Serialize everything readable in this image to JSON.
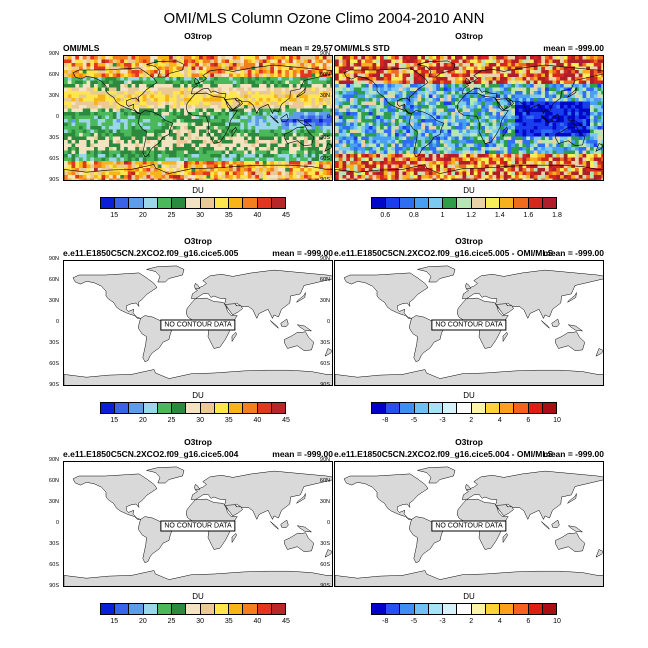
{
  "figure": {
    "title": "OMI/MLS Column Ozone Climo 2004-2010 ANN"
  },
  "map_axis": {
    "lat_labels": [
      "90N",
      "60N",
      "30N",
      "0",
      "30S",
      "60S",
      "90S"
    ]
  },
  "colors": {
    "abs_palette": [
      "#0b1fd9",
      "#3a63e8",
      "#5e9be8",
      "#9bd6ea",
      "#4bb95a",
      "#2c8a3f",
      "#f3e3c1",
      "#e9c995",
      "#ffe64d",
      "#f9b419",
      "#f57f1f",
      "#e0371e",
      "#b72727"
    ],
    "std_palette": [
      "#0008c8",
      "#1a3df0",
      "#2f6ef0",
      "#4aa0f0",
      "#7dcaf0",
      "#2e9e4a",
      "#b7e6b4",
      "#ead2a8",
      "#f7ef5a",
      "#f7b11e",
      "#ef6c1e",
      "#d5271e",
      "#b01e2a"
    ],
    "diff_palette": [
      "#0000c8",
      "#2a4ff0",
      "#3f8ef5",
      "#6fc0f5",
      "#a8e2f7",
      "#d5f2fb",
      "#ffffff",
      "#fff3a8",
      "#ffd23c",
      "#ffa01e",
      "#f5621e",
      "#dd1e14",
      "#a80e14"
    ],
    "land": "#d9d9d9"
  },
  "chart_data": [
    {
      "type": "heatmap",
      "panel": "top-left",
      "title": "O3trop",
      "left_string": "OMI/MLS",
      "right_string": "mean =  29.57",
      "has_data": true,
      "colorbar_label": "DU",
      "colorbar_levels": [
        "15",
        "20",
        "25",
        "30",
        "35",
        "40",
        "45"
      ],
      "colorbar_bins": 13
    },
    {
      "type": "heatmap",
      "panel": "top-right",
      "title": "O3trop",
      "left_string": "OMI/MLS STD",
      "right_string": "mean = -999.00",
      "has_data": true,
      "colorbar_label": "DU",
      "colorbar_levels": [
        "0.6",
        "0.8",
        "1",
        "1.2",
        "1.4",
        "1.6",
        "1.8"
      ],
      "colorbar_bins": 13
    },
    {
      "type": "heatmap",
      "panel": "middle-left",
      "title": "O3trop",
      "left_string": "e.e11.E1850C5CN.2XCO2.f09_g16.cice5.005",
      "right_string": "mean = -999.00",
      "has_data": false,
      "no_data_text": "NO CONTOUR DATA",
      "colorbar_label": "DU",
      "colorbar_levels": [
        "15",
        "20",
        "25",
        "30",
        "35",
        "40",
        "45"
      ],
      "colorbar_bins": 13
    },
    {
      "type": "heatmap",
      "panel": "middle-right",
      "title": "O3trop",
      "left_string": "e.e11.E1850C5CN.2XCO2.f09_g16.cice5.005 - OMI/MLS",
      "right_string": "mean = -999.00",
      "has_data": false,
      "no_data_text": "NO CONTOUR DATA",
      "colorbar_label": "DU",
      "colorbar_levels": [
        "-8",
        "-5",
        "-3",
        "2",
        "4",
        "6",
        "10"
      ],
      "colorbar_bins": 13
    },
    {
      "type": "heatmap",
      "panel": "bottom-left",
      "title": "O3trop",
      "left_string": "e.e11.E1850C5CN.2XCO2.f09_g16.cice5.004",
      "right_string": "mean = -999.00",
      "has_data": false,
      "no_data_text": "NO CONTOUR DATA",
      "colorbar_label": "DU",
      "colorbar_levels": [
        "15",
        "20",
        "25",
        "30",
        "35",
        "40",
        "45"
      ],
      "colorbar_bins": 13
    },
    {
      "type": "heatmap",
      "panel": "bottom-right",
      "title": "O3trop",
      "left_string": "e.e11.E1850C5CN.2XCO2.f09_g16.cice5.004 - OMI/MLS",
      "right_string": "mean = -999.00",
      "has_data": false,
      "no_data_text": "NO CONTOUR DATA",
      "colorbar_label": "DU",
      "colorbar_levels": [
        "-8",
        "-5",
        "-3",
        "2",
        "4",
        "6",
        "10"
      ],
      "colorbar_bins": 13
    }
  ]
}
